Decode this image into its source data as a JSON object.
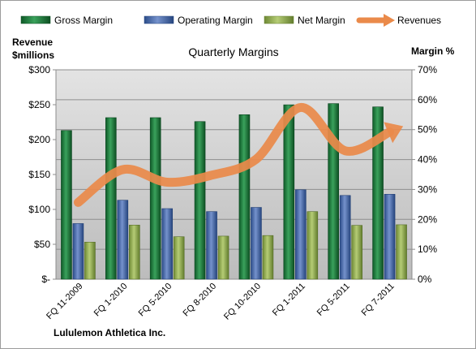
{
  "chart_data": {
    "type": "bar",
    "title": "Quarterly Margins",
    "company": "Lululemon Athletica Inc.",
    "left_axis": {
      "label_line1": "Revenue",
      "label_line2": "$millions",
      "min": 0,
      "max": 300,
      "step": 50,
      "tick_labels": [
        "$-",
        "$50",
        "$100",
        "$150",
        "$200",
        "$250",
        "$300"
      ]
    },
    "right_axis": {
      "label": "Margin %",
      "min": 0,
      "max": 70,
      "step": 10,
      "tick_labels": [
        "0%",
        "10%",
        "20%",
        "30%",
        "40%",
        "50%",
        "60%",
        "70%"
      ]
    },
    "categories": [
      "FQ 11-2009",
      "FQ 1-2010",
      "FQ 5-2010",
      "FQ 8-2010",
      "FQ 10-2010",
      "FQ 1-2011",
      "FQ 5-2011",
      "FQ 7-2011"
    ],
    "series": [
      {
        "name": "Gross Margin",
        "kind": "bar",
        "axis": "right",
        "color": "#1e7a3c",
        "values": [
          49.7,
          54.0,
          54.0,
          52.7,
          55.0,
          58.3,
          58.7,
          57.6
        ]
      },
      {
        "name": "Operating Margin",
        "kind": "bar",
        "axis": "right",
        "color": "#4a6fb0",
        "values": [
          18.6,
          26.4,
          23.6,
          22.6,
          24.0,
          29.9,
          28.0,
          28.4
        ]
      },
      {
        "name": "Net Margin",
        "kind": "bar",
        "axis": "right",
        "color": "#96b050",
        "values": [
          12.4,
          18.1,
          14.2,
          14.4,
          14.6,
          22.6,
          18.0,
          18.2
        ]
      },
      {
        "name": "Revenues",
        "kind": "line",
        "axis": "left",
        "color": "#ea8a4a",
        "values": [
          110,
          157,
          139,
          149,
          172,
          246,
          184,
          211
        ]
      }
    ],
    "grid": true,
    "legend_position": "top"
  }
}
